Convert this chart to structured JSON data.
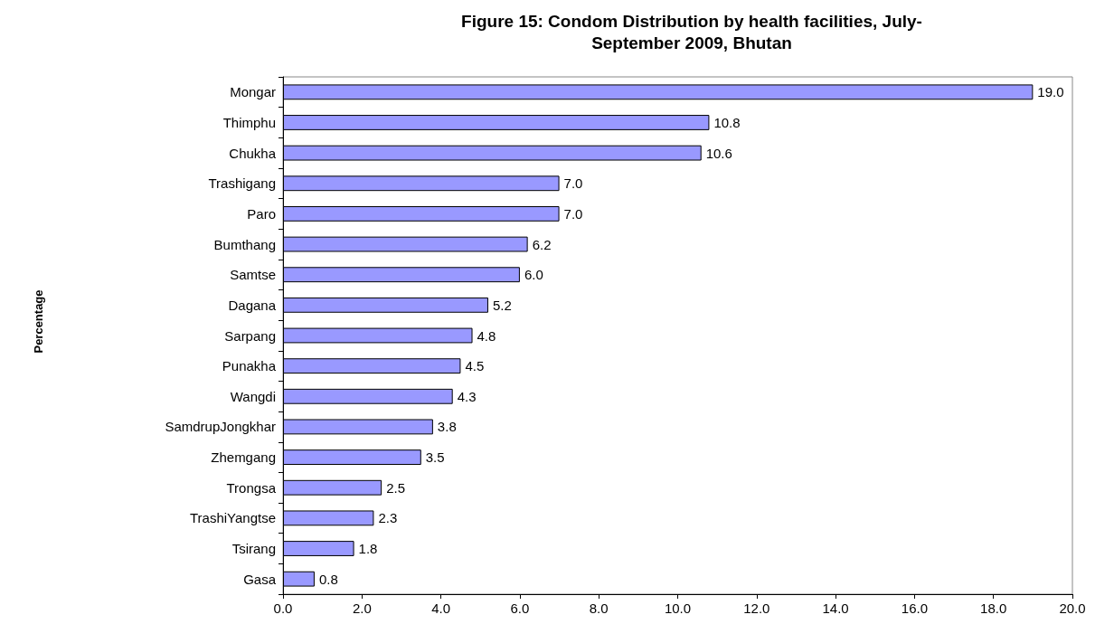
{
  "chart_data": {
    "type": "bar",
    "orientation": "horizontal",
    "title": "Figure 15: Condom Distribution by health facilities, July-\nSeptember 2009, Bhutan",
    "annotations": [
      "Percentage"
    ],
    "categories": [
      "Mongar",
      "Thimphu",
      "Chukha",
      "Trashigang",
      "Paro",
      "Bumthang",
      "Samtse",
      "Dagana",
      "Sarpang",
      "Punakha",
      "Wangdi",
      "SamdrupJongkhar",
      "Zhemgang",
      "Trongsa",
      "TrashiYangtse",
      "Tsirang",
      "Gasa"
    ],
    "values": [
      19.0,
      10.8,
      10.6,
      7.0,
      7.0,
      6.2,
      6.0,
      5.2,
      4.8,
      4.5,
      4.3,
      3.8,
      3.5,
      2.5,
      2.3,
      1.8,
      0.8
    ],
    "value_labels": [
      "19.0",
      "10.8",
      "10.6",
      "7.0",
      "7.0",
      "6.2",
      "6.0",
      "5.2",
      "4.8",
      "4.5",
      "4.3",
      "3.8",
      "3.5",
      "2.5",
      "2.3",
      "1.8",
      "0.8"
    ],
    "color": "#9999ff",
    "xlim": [
      0,
      20
    ],
    "xticks": [
      {
        "value": 0,
        "label": "0.0"
      },
      {
        "value": 2,
        "label": "2.0"
      },
      {
        "value": 4,
        "label": "4.0"
      },
      {
        "value": 6,
        "label": "6.0"
      },
      {
        "value": 8,
        "label": "8.0"
      },
      {
        "value": 10,
        "label": "10.0"
      },
      {
        "value": 12,
        "label": "12.0"
      },
      {
        "value": 14,
        "label": "14.0"
      },
      {
        "value": 16,
        "label": "16.0"
      },
      {
        "value": 18,
        "label": "18.0"
      },
      {
        "value": 20,
        "label": "20.0"
      }
    ],
    "grid": false
  }
}
